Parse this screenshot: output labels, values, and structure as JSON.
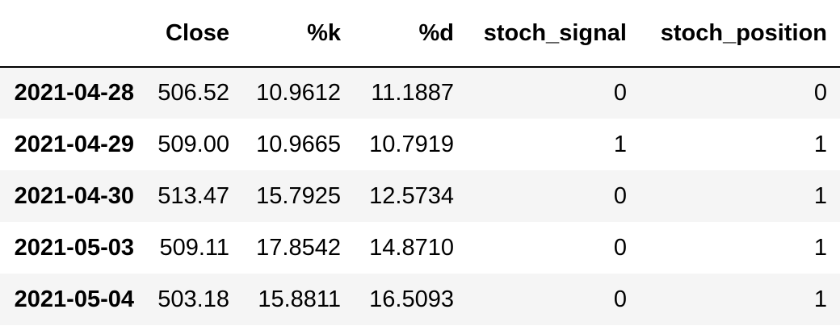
{
  "table": {
    "columns": [
      "",
      "Close",
      "%k",
      "%d",
      "stoch_signal",
      "stoch_position"
    ],
    "rows": [
      {
        "index": "2021-04-28",
        "close": "506.52",
        "k": "10.9612",
        "d": "11.1887",
        "stoch_signal": "0",
        "stoch_position": "0"
      },
      {
        "index": "2021-04-29",
        "close": "509.00",
        "k": "10.9665",
        "d": "10.7919",
        "stoch_signal": "1",
        "stoch_position": "1"
      },
      {
        "index": "2021-04-30",
        "close": "513.47",
        "k": "15.7925",
        "d": "12.5734",
        "stoch_signal": "0",
        "stoch_position": "1"
      },
      {
        "index": "2021-05-03",
        "close": "509.11",
        "k": "17.8542",
        "d": "14.8710",
        "stoch_signal": "0",
        "stoch_position": "1"
      },
      {
        "index": "2021-05-04",
        "close": "503.18",
        "k": "15.8811",
        "d": "16.5093",
        "stoch_signal": "0",
        "stoch_position": "1"
      }
    ]
  }
}
